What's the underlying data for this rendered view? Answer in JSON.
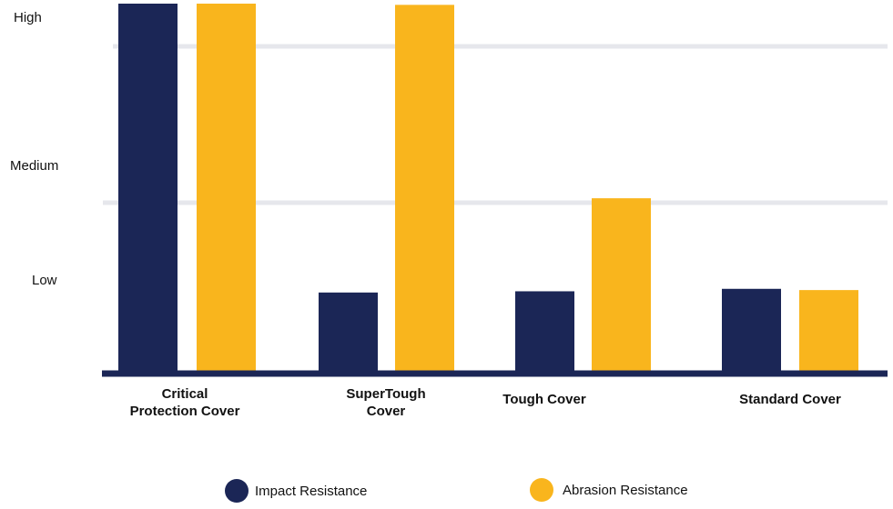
{
  "chart_data": {
    "type": "bar",
    "title": "",
    "xlabel": "",
    "ylabel": "",
    "y_tick_labels": [
      "Low",
      "Medium",
      "High"
    ],
    "categories": [
      [
        "Critical",
        "Protection Cover"
      ],
      [
        "SuperTough",
        "Cover"
      ],
      [
        "Tough Cover"
      ],
      [
        "Standard Cover"
      ]
    ],
    "series": [
      {
        "name": "Impact Resistance",
        "color": "#1b2656",
        "values": [
          3.0,
          0.64,
          0.65,
          0.67
        ]
      },
      {
        "name": "Abrasion Resistance",
        "color": "#f9b51d",
        "values": [
          3.0,
          2.99,
          1.41,
          0.66
        ]
      }
    ],
    "ylim": [
      0,
      3
    ],
    "grid": true,
    "legend_position": "bottom"
  }
}
